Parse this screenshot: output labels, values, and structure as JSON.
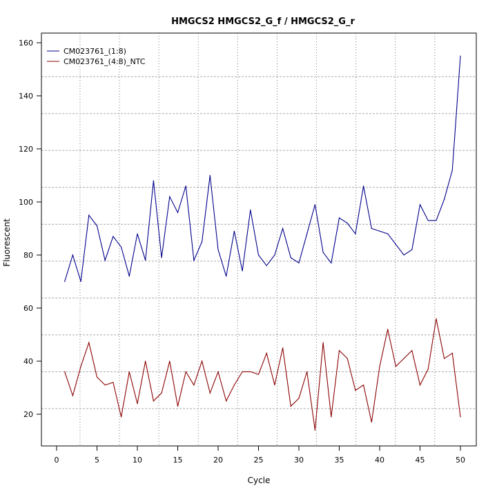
{
  "chart_data": {
    "type": "line",
    "title": "HMGCS2  HMGCS2_G_f / HMGCS2_G_r",
    "xlabel": "Cycle",
    "ylabel": "Fluorescent",
    "xlim": [
      -2,
      53
    ],
    "ylim": [
      8,
      164
    ],
    "xticks": [
      0,
      5,
      10,
      15,
      20,
      25,
      30,
      35,
      40,
      45,
      50
    ],
    "yticks": [
      20,
      40,
      60,
      80,
      100,
      120,
      140,
      160
    ],
    "grid": true,
    "legend_position": "top-left",
    "x": [
      1,
      2,
      3,
      4,
      5,
      6,
      7,
      8,
      9,
      10,
      11,
      12,
      13,
      14,
      15,
      16,
      17,
      18,
      19,
      20,
      21,
      22,
      23,
      24,
      25,
      26,
      27,
      28,
      29,
      30,
      31,
      32,
      33,
      34,
      35,
      36,
      37,
      38,
      39,
      40,
      41,
      42,
      43,
      44,
      45,
      46,
      47,
      48,
      49,
      50
    ],
    "series": [
      {
        "name": "CM023761_(1:8)",
        "color": "#00008B",
        "values": [
          70,
          80,
          70,
          95,
          91,
          78,
          87,
          83,
          72,
          88,
          78,
          108,
          79,
          102,
          96,
          106,
          78,
          85,
          110,
          82,
          72,
          89,
          74,
          97,
          80,
          76,
          80,
          90,
          79,
          77,
          88,
          99,
          81,
          77,
          94,
          92,
          88,
          106,
          90,
          89,
          88,
          84,
          80,
          82,
          99,
          93,
          93,
          101,
          112,
          155
        ]
      },
      {
        "name": "CM023761_(4:8)_NTC",
        "color": "#8B0000",
        "values": [
          36,
          27,
          38,
          47,
          34,
          31,
          32,
          19,
          36,
          24,
          40,
          25,
          28,
          40,
          23,
          36,
          31,
          40,
          28,
          36,
          25,
          31,
          36,
          36,
          35,
          43,
          31,
          45,
          23,
          26,
          36,
          14,
          47,
          19,
          44,
          41,
          29,
          31,
          17,
          38,
          52,
          38,
          41,
          44,
          31,
          37,
          56,
          41,
          43,
          19
        ]
      }
    ]
  }
}
